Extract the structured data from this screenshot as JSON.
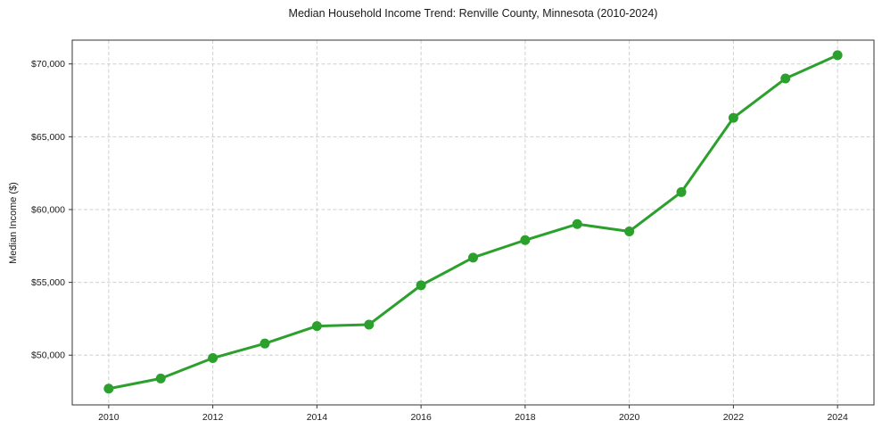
{
  "title": "Median Household Income Trend: Renville County, Minnesota (2010-2024)",
  "chart_data": {
    "type": "line",
    "title": "Median Household Income Trend: Renville County, Minnesota (2010-2024)",
    "xlabel": "",
    "ylabel": "Median Income ($)",
    "x": [
      2010,
      2011,
      2012,
      2013,
      2014,
      2015,
      2016,
      2017,
      2018,
      2019,
      2020,
      2021,
      2022,
      2023,
      2024
    ],
    "series": [
      {
        "name": "Median Household Income",
        "values": [
          47700,
          48400,
          49800,
          50800,
          52000,
          52100,
          54800,
          56700,
          57900,
          59000,
          58500,
          61200,
          66300,
          69000,
          70600
        ]
      }
    ],
    "x_ticks": [
      2010,
      2012,
      2014,
      2016,
      2018,
      2020,
      2022,
      2024
    ],
    "x_tick_labels": [
      "2010",
      "2012",
      "2014",
      "2016",
      "2018",
      "2020",
      "2022",
      "2024"
    ],
    "y_ticks": [
      50000,
      55000,
      60000,
      65000,
      70000
    ],
    "y_tick_labels": [
      "$50,000",
      "$55,000",
      "$60,000",
      "$65,000",
      "$70,000"
    ],
    "xlim": [
      2009.3,
      2024.7
    ],
    "ylim": [
      46585,
      71635
    ],
    "grid": true,
    "grid_style": "dashed",
    "legend": false,
    "marker": "circle",
    "colors": {
      "line": "#2ca02c",
      "grid": "#d0d0d0",
      "spine": "#333333",
      "text": "#1a1a1a",
      "background": "#ffffff"
    }
  }
}
